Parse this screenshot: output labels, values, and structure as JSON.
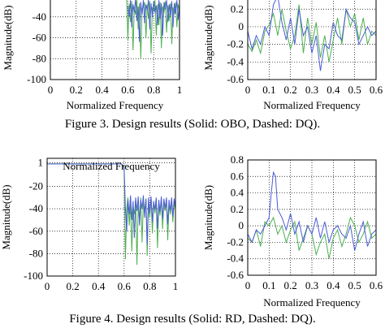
{
  "figure3_caption": "Figure 3. Design results (Solid: OBO, Dashed: DQ).",
  "figure4_caption": "Figure 4. Design results (Solid: RD, Dashed: DQ).",
  "colors": {
    "solid": "#4caf50",
    "dashed": "#4a5cd6"
  },
  "chart_data": [
    {
      "type": "line",
      "id": "fig3-left",
      "xlabel": "Normalized Frequency",
      "ylabel": "Magnitude(dB)",
      "xlim": [
        0,
        1
      ],
      "ylim": [
        -100,
        -20
      ],
      "xticks": [
        "0",
        "0.2",
        "0.4",
        "0.6",
        "0.8",
        "1"
      ],
      "yticks": [
        "-40",
        "-60",
        "-80",
        "-100"
      ],
      "ytick_values": [
        -40,
        -60,
        -80,
        -100
      ],
      "grid": true,
      "series": [
        {
          "style": "solid",
          "x": [
            0.59,
            0.6,
            0.61,
            0.62,
            0.63,
            0.64,
            0.65,
            0.66,
            0.67,
            0.68,
            0.69,
            0.7,
            0.71,
            0.72,
            0.73,
            0.74,
            0.75,
            0.76,
            0.77,
            0.78,
            0.79,
            0.8,
            0.81,
            0.82,
            0.83,
            0.84,
            0.85,
            0.86,
            0.87,
            0.88,
            0.89,
            0.9,
            0.91,
            0.92,
            0.93,
            0.94,
            0.95,
            0.96,
            0.97,
            0.98,
            0.99,
            1.0
          ],
          "y": [
            -20,
            -62,
            -28,
            -45,
            -25,
            -72,
            -30,
            -38,
            -24,
            -52,
            -27,
            -80,
            -33,
            -30,
            -26,
            -60,
            -29,
            -42,
            -25,
            -75,
            -31,
            -35,
            -24,
            -58,
            -28,
            -48,
            -26,
            -70,
            -30,
            -36,
            -25,
            -55,
            -29,
            -44,
            -27,
            -66,
            -31,
            -38,
            -26,
            -50,
            -28,
            -34
          ]
        },
        {
          "style": "dashed",
          "x": [
            0.6,
            0.61,
            0.62,
            0.63,
            0.64,
            0.65,
            0.66,
            0.67,
            0.68,
            0.69,
            0.7,
            0.71,
            0.72,
            0.73,
            0.74,
            0.75,
            0.76,
            0.77,
            0.78,
            0.79,
            0.8,
            0.81,
            0.82,
            0.83,
            0.84,
            0.85,
            0.86,
            0.87,
            0.88,
            0.89,
            0.9,
            0.91,
            0.92,
            0.93,
            0.94,
            0.95,
            0.96,
            0.97,
            0.98,
            0.99,
            1.0
          ],
          "y": [
            -30,
            -40,
            -24,
            -50,
            -28,
            -36,
            -22,
            -44,
            -30,
            -64,
            -26,
            -38,
            -24,
            -46,
            -28,
            -34,
            -23,
            -52,
            -27,
            -40,
            -25,
            -36,
            -29,
            -48,
            -24,
            -42,
            -27,
            -58,
            -26,
            -33,
            -24,
            -45,
            -28,
            -39,
            -25,
            -50,
            -27,
            -37,
            -24,
            -43,
            -29
          ]
        }
      ]
    },
    {
      "type": "line",
      "id": "fig3-right",
      "xlabel": "Normalized Frequency",
      "ylabel": "Magnitude(dB)",
      "xlim": [
        0,
        0.6
      ],
      "ylim": [
        -0.6,
        0.35
      ],
      "xticks": [
        "0",
        "0.1",
        "0.2",
        "0.3",
        "0.4",
        "0.5",
        "0.6"
      ],
      "yticks": [
        "0.2",
        "0",
        "-0.2",
        "-0.4",
        "-0.6"
      ],
      "ytick_values": [
        0.2,
        0,
        -0.2,
        -0.4,
        -0.6
      ],
      "grid": true,
      "series": [
        {
          "style": "solid",
          "x": [
            0,
            0.02,
            0.04,
            0.06,
            0.08,
            0.1,
            0.12,
            0.14,
            0.16,
            0.18,
            0.2,
            0.22,
            0.24,
            0.26,
            0.28,
            0.3,
            0.32,
            0.34,
            0.36,
            0.38,
            0.4,
            0.42,
            0.44,
            0.46,
            0.48,
            0.5,
            0.52,
            0.54,
            0.56,
            0.58,
            0.6
          ],
          "y": [
            -0.2,
            -0.28,
            -0.15,
            -0.3,
            -0.05,
            0.02,
            0.15,
            -0.1,
            0.2,
            -0.05,
            -0.25,
            -0.1,
            0.25,
            -0.3,
            0.1,
            -0.2,
            0.05,
            -0.35,
            -0.1,
            -0.4,
            -0.15,
            0.1,
            -0.2,
            0.2,
            0.0,
            0.15,
            -0.15,
            0.1,
            -0.2,
            -0.05,
            -0.1
          ]
        },
        {
          "style": "dashed",
          "x": [
            0,
            0.02,
            0.04,
            0.06,
            0.08,
            0.1,
            0.12,
            0.14,
            0.16,
            0.18,
            0.2,
            0.22,
            0.24,
            0.26,
            0.28,
            0.3,
            0.32,
            0.34,
            0.36,
            0.38,
            0.4,
            0.42,
            0.44,
            0.46,
            0.48,
            0.5,
            0.52,
            0.54,
            0.56,
            0.58,
            0.6
          ],
          "y": [
            -0.05,
            -0.25,
            -0.1,
            -0.2,
            0.0,
            -0.1,
            0.25,
            0.4,
            0.05,
            -0.15,
            0.1,
            -0.2,
            0.2,
            -0.1,
            0.0,
            -0.3,
            -0.1,
            -0.5,
            -0.2,
            -0.25,
            0.05,
            -0.1,
            -0.15,
            0.2,
            0.1,
            0.05,
            -0.2,
            -0.1,
            0.0,
            -0.1,
            -0.05
          ]
        }
      ]
    },
    {
      "type": "line",
      "id": "fig4-left",
      "xlabel": "",
      "ylabel": "Magnitude(dB)",
      "xlim": [
        0,
        1
      ],
      "ylim": [
        -100,
        5
      ],
      "xticks": [
        "0",
        "0.2",
        "0.4",
        "0.6",
        "0.8",
        "1"
      ],
      "yticks": [
        "1",
        "-20",
        "-40",
        "-60",
        "-80",
        "-100"
      ],
      "ytick_values": [
        1,
        -20,
        -40,
        -60,
        -80,
        -100
      ],
      "grid": true,
      "series": [
        {
          "style": "solid",
          "x": [
            0,
            0.1,
            0.2,
            0.3,
            0.4,
            0.5,
            0.58,
            0.6,
            0.61,
            0.62,
            0.63,
            0.64,
            0.65,
            0.66,
            0.67,
            0.68,
            0.69,
            0.7,
            0.71,
            0.72,
            0.73,
            0.74,
            0.75,
            0.76,
            0.77,
            0.78,
            0.79,
            0.8,
            0.81,
            0.82,
            0.83,
            0.84,
            0.85,
            0.86,
            0.87,
            0.88,
            0.89,
            0.9,
            0.91,
            0.92,
            0.93,
            0.94,
            0.95,
            0.96,
            0.97,
            0.98,
            0.99,
            1.0
          ],
          "y": [
            0,
            0,
            0,
            0,
            0,
            0,
            0,
            -5,
            -85,
            -40,
            -30,
            -55,
            -35,
            -78,
            -38,
            -45,
            -32,
            -90,
            -36,
            -50,
            -30,
            -70,
            -34,
            -42,
            -31,
            -82,
            -37,
            -48,
            -30,
            -62,
            -35,
            -44,
            -33,
            -75,
            -36,
            -46,
            -31,
            -58,
            -34,
            -42,
            -32,
            -68,
            -36,
            -45,
            -33,
            -52,
            -35,
            -40
          ]
        },
        {
          "style": "dashed",
          "x": [
            0,
            0.1,
            0.2,
            0.3,
            0.4,
            0.5,
            0.58,
            0.6,
            0.61,
            0.62,
            0.63,
            0.64,
            0.65,
            0.66,
            0.67,
            0.68,
            0.69,
            0.7,
            0.71,
            0.72,
            0.73,
            0.74,
            0.75,
            0.76,
            0.77,
            0.78,
            0.79,
            0.8,
            0.81,
            0.82,
            0.83,
            0.84,
            0.85,
            0.86,
            0.87,
            0.88,
            0.89,
            0.9,
            0.91,
            0.92,
            0.93,
            0.94,
            0.95,
            0.96,
            0.97,
            0.98,
            0.99,
            1.0
          ],
          "y": [
            0,
            0,
            0,
            0,
            0,
            0,
            0,
            -3,
            -40,
            -60,
            -32,
            -45,
            -28,
            -50,
            -33,
            -66,
            -30,
            -42,
            -29,
            -55,
            -32,
            -40,
            -28,
            -48,
            -31,
            -72,
            -30,
            -44,
            -29,
            -52,
            -33,
            -41,
            -30,
            -58,
            -32,
            -43,
            -29,
            -49,
            -31,
            -40,
            -30,
            -54,
            -32,
            -42,
            -30,
            -47,
            -31,
            -39
          ]
        }
      ]
    },
    {
      "type": "line",
      "id": "fig4-right",
      "xlabel": "Normalized Frequency",
      "ylabel": "Magnitude(dB)",
      "xlim": [
        0,
        0.6
      ],
      "ylim": [
        -0.6,
        0.8
      ],
      "xticks": [
        "0",
        "0.1",
        "0.2",
        "0.3",
        "0.4",
        "0.5",
        "0.6"
      ],
      "yticks": [
        "0.8",
        "0.6",
        "0.4",
        "0.2",
        "0",
        "-0.2",
        "-0.4",
        "-0.6"
      ],
      "ytick_values": [
        0.8,
        0.6,
        0.4,
        0.2,
        0,
        -0.2,
        -0.4,
        -0.6
      ],
      "grid": true,
      "series": [
        {
          "style": "solid",
          "x": [
            0,
            0.02,
            0.04,
            0.06,
            0.08,
            0.1,
            0.12,
            0.14,
            0.16,
            0.18,
            0.2,
            0.22,
            0.24,
            0.26,
            0.28,
            0.3,
            0.32,
            0.34,
            0.36,
            0.38,
            0.4,
            0.42,
            0.44,
            0.46,
            0.48,
            0.5,
            0.52,
            0.54,
            0.56,
            0.58,
            0.6
          ],
          "y": [
            -0.15,
            -0.2,
            -0.05,
            -0.25,
            0.05,
            0.0,
            0.1,
            -0.1,
            0.0,
            -0.2,
            -0.05,
            0.05,
            -0.3,
            -0.15,
            0.0,
            -0.1,
            -0.35,
            -0.2,
            -0.1,
            -0.4,
            -0.15,
            -0.05,
            -0.25,
            -0.1,
            0.1,
            0.0,
            -0.2,
            -0.1,
            0.05,
            -0.15,
            -0.1
          ]
        },
        {
          "style": "dashed",
          "x": [
            0,
            0.02,
            0.04,
            0.06,
            0.08,
            0.1,
            0.11,
            0.12,
            0.13,
            0.14,
            0.16,
            0.18,
            0.2,
            0.22,
            0.24,
            0.26,
            0.28,
            0.3,
            0.32,
            0.34,
            0.36,
            0.38,
            0.4,
            0.42,
            0.44,
            0.46,
            0.48,
            0.5,
            0.52,
            0.54,
            0.56,
            0.58,
            0.6
          ],
          "y": [
            -0.1,
            -0.2,
            -0.05,
            -0.1,
            0.0,
            0.1,
            0.4,
            0.65,
            0.6,
            0.2,
            0.1,
            -0.05,
            0.15,
            -0.1,
            0.05,
            -0.2,
            0.0,
            -0.1,
            0.1,
            -0.15,
            0.05,
            -0.2,
            -0.05,
            0.0,
            -0.1,
            -0.15,
            0.0,
            -0.3,
            -0.1,
            0.05,
            -0.25,
            -0.1,
            -0.05
          ]
        }
      ]
    }
  ]
}
